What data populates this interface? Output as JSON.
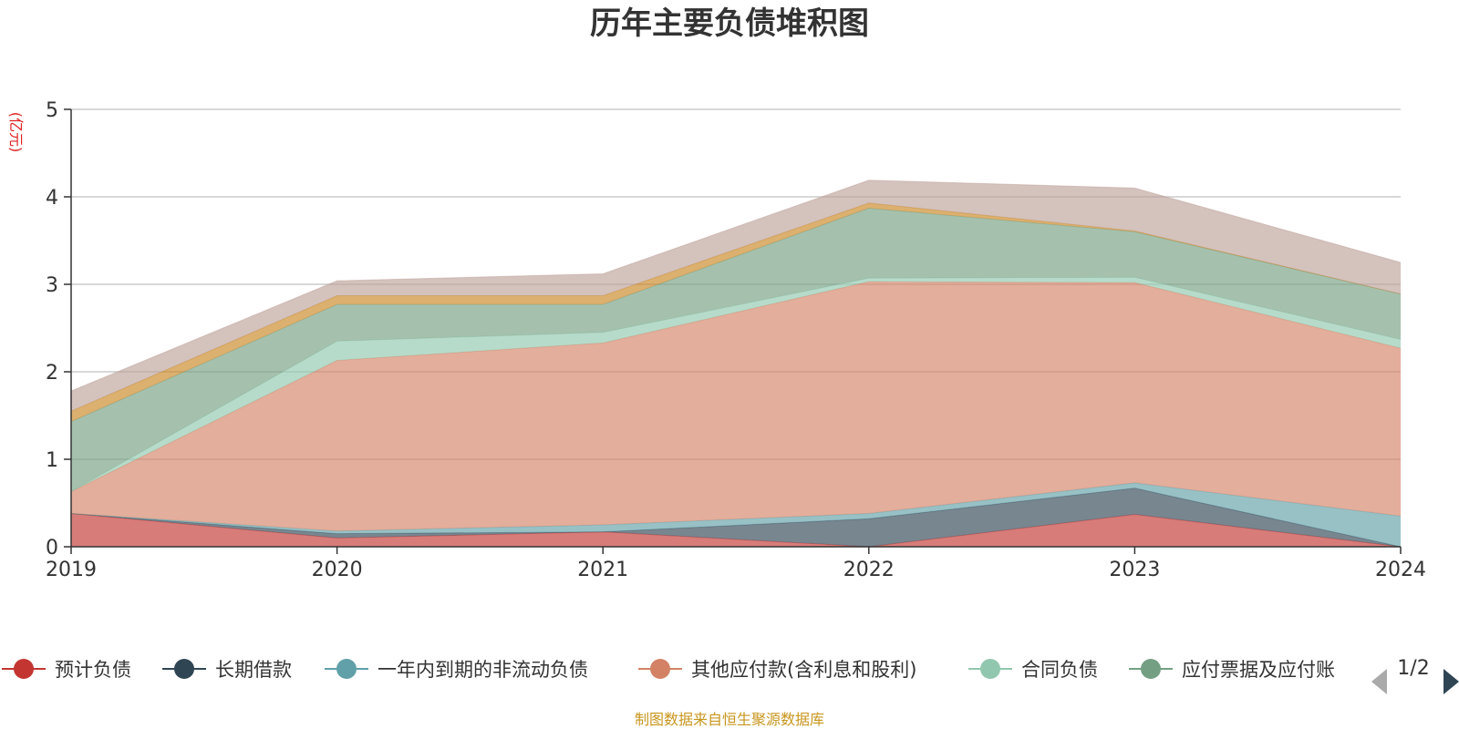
{
  "chart_data": {
    "type": "area",
    "stacked": true,
    "title": "历年主要负债堆积图",
    "unit_label": "(亿元)",
    "x": [
      "2019",
      "2020",
      "2021",
      "2022",
      "2023",
      "2024"
    ],
    "ylim": [
      0,
      5
    ],
    "yticks": [
      "0",
      "1",
      "2",
      "3",
      "4",
      "5"
    ],
    "grid": true,
    "legend_position": "bottom",
    "series": [
      {
        "name": "预计负债",
        "color": "#c23531",
        "values": [
          0.38,
          0.1,
          0.17,
          0.0,
          0.37,
          0.0
        ]
      },
      {
        "name": "长期借款",
        "color": "#2f4554",
        "values": [
          0.0,
          0.05,
          0.0,
          0.32,
          0.3,
          0.0
        ]
      },
      {
        "name": "一年内到期的非流动负债",
        "color": "#61a0a8",
        "values": [
          0.0,
          0.03,
          0.08,
          0.06,
          0.06,
          0.35
        ]
      },
      {
        "name": "其他应付款(含利息和股利)",
        "color": "#d48265",
        "values": [
          0.25,
          1.95,
          2.08,
          2.65,
          2.29,
          1.92
        ]
      },
      {
        "name": "合同负债",
        "color": "#91c7ae",
        "values": [
          0.0,
          0.22,
          0.12,
          0.04,
          0.06,
          0.1
        ]
      },
      {
        "name": "应付票据及应付账款",
        "color": "#749f83",
        "values": [
          0.8,
          0.42,
          0.32,
          0.8,
          0.52,
          0.52
        ]
      },
      {
        "name": "",
        "color": "#ca8622",
        "values": [
          0.12,
          0.1,
          0.1,
          0.06,
          0.01,
          0.0
        ]
      },
      {
        "name": "",
        "color": "#bda29a",
        "values": [
          0.23,
          0.17,
          0.25,
          0.26,
          0.49,
          0.36
        ]
      }
    ]
  },
  "legend": {
    "visible_items": [
      "预计负债",
      "长期借款",
      "一年内到期的非流动负债",
      "其他应付款(含利息和股利)",
      "合同负债",
      "应付票据及应付账"
    ],
    "page_indicator": "1/2",
    "prev_icon": "triangle-left-icon",
    "next_icon": "triangle-right-icon"
  },
  "source_text": "制图数据来自恒生聚源数据库"
}
